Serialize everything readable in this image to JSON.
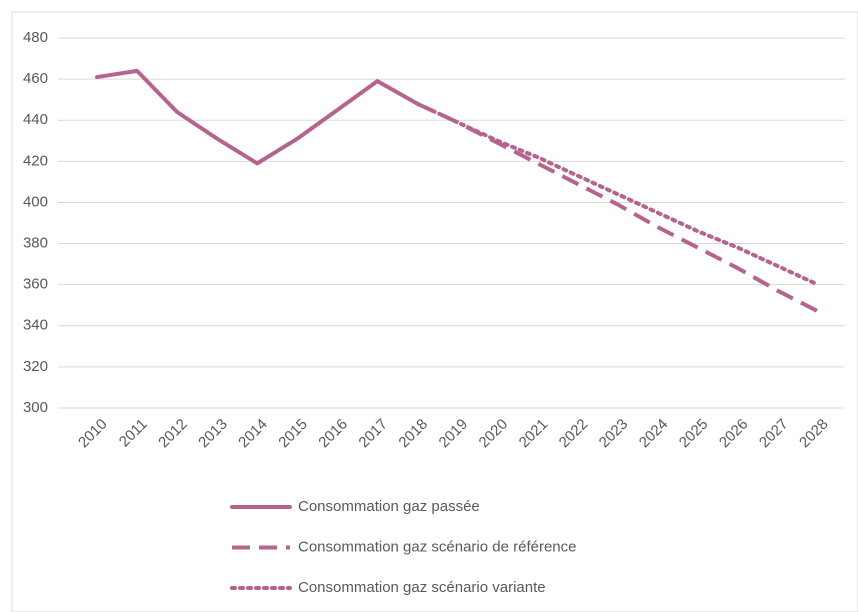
{
  "chart_data": {
    "type": "line",
    "categories": [
      "2010",
      "2011",
      "2012",
      "2013",
      "2014",
      "2015",
      "2016",
      "2017",
      "2018",
      "2019",
      "2020",
      "2021",
      "2022",
      "2023",
      "2024",
      "2025",
      "2026",
      "2027",
      "2028"
    ],
    "series": [
      {
        "name": "Consommation gaz passée",
        "color": "#b5648e",
        "style": "solid",
        "values": [
          461,
          464,
          444,
          431,
          419,
          431,
          445,
          459,
          448,
          null,
          null,
          null,
          null,
          null,
          null,
          null,
          null,
          null,
          null
        ]
      },
      {
        "name": "Consommation gaz scénario de référence",
        "color": "#b5648e",
        "style": "dashed",
        "values": [
          null,
          null,
          null,
          null,
          null,
          null,
          null,
          null,
          448,
          439,
          429,
          419,
          409,
          399,
          388,
          378,
          368,
          357,
          347
        ]
      },
      {
        "name": "Consommation gaz scénario variante",
        "color": "#b5648e",
        "style": "dotted",
        "values": [
          null,
          null,
          null,
          null,
          null,
          null,
          null,
          null,
          448,
          439,
          430,
          422,
          413,
          404,
          395,
          386,
          378,
          369,
          360
        ]
      }
    ],
    "ylim": [
      300,
      480
    ],
    "yticks": [
      300,
      320,
      340,
      360,
      380,
      400,
      420,
      440,
      460,
      480
    ],
    "grid": true,
    "legend": "bottom"
  }
}
